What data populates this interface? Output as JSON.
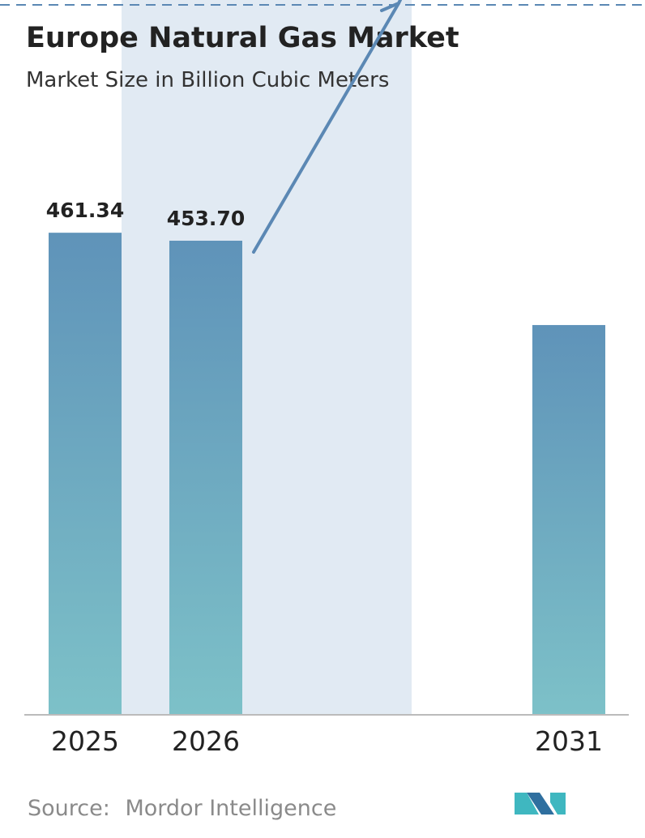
{
  "chart_data": {
    "type": "bar",
    "title": "Europe Natural Gas Market",
    "subtitle": "Market Size in Billion Cubic Meters",
    "categories": [
      "2025",
      "2026",
      "2031"
    ],
    "values": [
      461.34,
      453.7,
      373.0
    ],
    "value_labels": [
      "461.34",
      "453.70",
      ""
    ],
    "ylim": [
      0,
      470
    ],
    "highlighted_range": [
      "2026",
      "2030"
    ],
    "trend": "rising arrow from 2026 bar, pointing up-right"
  },
  "source": {
    "label": "Source:",
    "name": "Mordor Intelligence"
  },
  "colors": {
    "bar_top": "#5f93b9",
    "bar_bottom": "#7dc1c8",
    "highlight_band": "#e1eaf3",
    "arrow": "#5b88b4",
    "axis": "#bbbbbb",
    "dashed_line": "#5b88b4",
    "logo_dark": "#2f6f9f",
    "logo_light": "#3fb7c0"
  },
  "logo": {
    "icon": "mordor-intelligence-logo-icon"
  }
}
